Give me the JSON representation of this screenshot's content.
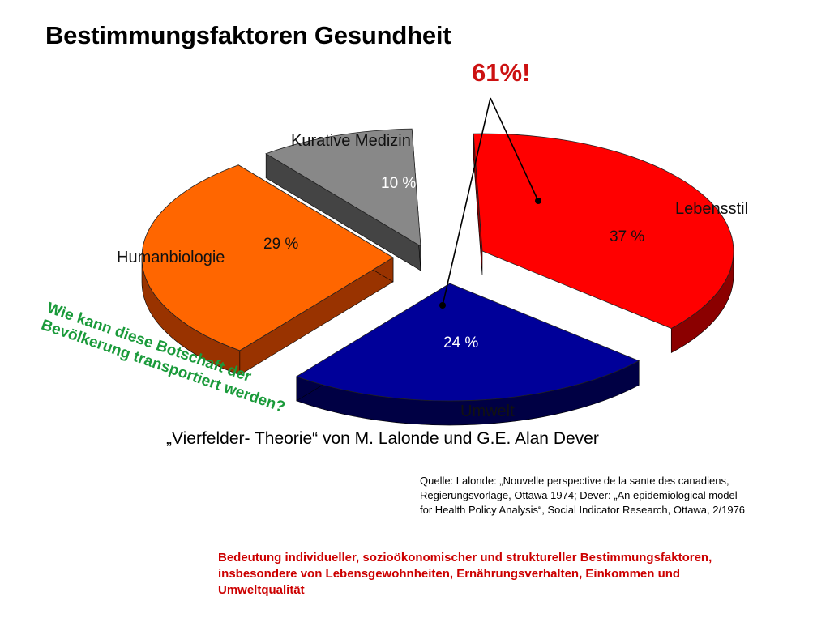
{
  "slide": {
    "title": "Bestimmungsfaktoren Gesundheit",
    "highlight": "61%!",
    "question": "Wie kann diese Botschaft der Bevölkerung transportiert werden?",
    "subtitle": "„Vierfelder- Theorie“ von M. Lalonde und G.E. Alan Dever",
    "source_lines": [
      "Quelle: Lalonde: „Nouvelle perspective de la sante des canadiens,",
      "Regierungsvorlage, Ottawa 1974; Dever: „An epidemiological model",
      "for Health Policy Analysis“, Social Indicator Research, Ottawa, 2/1976"
    ],
    "footer_lines": [
      "Bedeutung individueller, sozioökonomischer und struktureller Bestimmungsfaktoren,",
      "insbesondere von Lebensgewohnheiten, Ernährungsverhalten, Einkommen und",
      "Umweltqualität"
    ]
  },
  "colors": {
    "title": "#000000",
    "highlight": "#cc1111",
    "question": "#1a9a3a",
    "footer": "#cc0000"
  },
  "chart_data": {
    "type": "pie",
    "title": "",
    "style": "3d-exploded",
    "slices": [
      {
        "label": "Lebensstil",
        "value": 37,
        "value_label": "37 %",
        "top_color": "#ff0000",
        "side_color": "#8b0000"
      },
      {
        "label": "Umwelt",
        "value": 24,
        "value_label": "24 %",
        "top_color": "#000099",
        "side_color": "#000044"
      },
      {
        "label": "Humanbiologie",
        "value": 29,
        "value_label": "29 %",
        "top_color": "#ff6600",
        "side_color": "#993300"
      },
      {
        "label": "Kurative Medizin",
        "value": 10,
        "value_label": "10 %",
        "top_color": "#888888",
        "side_color": "#444444"
      }
    ],
    "callout": {
      "text": "61%!",
      "points_to": [
        "Lebensstil",
        "Umwelt"
      ]
    }
  }
}
